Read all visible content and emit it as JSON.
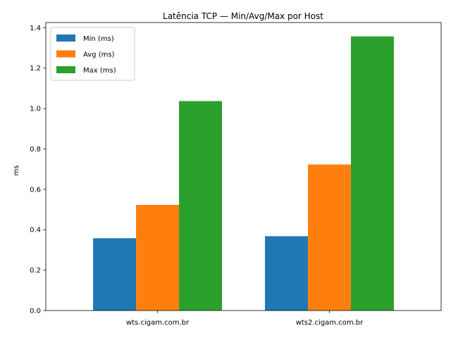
{
  "chart_data": {
    "type": "bar",
    "title": "Latência TCP — Min/Avg/Max por Host",
    "xlabel": "",
    "ylabel": "ms",
    "categories": [
      "wts.cigam.com.br",
      "wts2.cigam.com.br"
    ],
    "series": [
      {
        "name": "Min (ms)",
        "values": [
          0.358,
          0.368
        ],
        "color": "#1f77b4"
      },
      {
        "name": "Avg (ms)",
        "values": [
          0.523,
          0.723
        ],
        "color": "#ff7f0e"
      },
      {
        "name": "Max (ms)",
        "values": [
          1.037,
          1.357
        ],
        "color": "#2ca02c"
      }
    ],
    "ylim": [
      0,
      1.4257
    ],
    "yticks": [
      "0.0",
      "0.2",
      "0.4",
      "0.6",
      "0.8",
      "1.0",
      "1.2",
      "1.4"
    ],
    "grid": false,
    "legend_position": "top-left"
  }
}
